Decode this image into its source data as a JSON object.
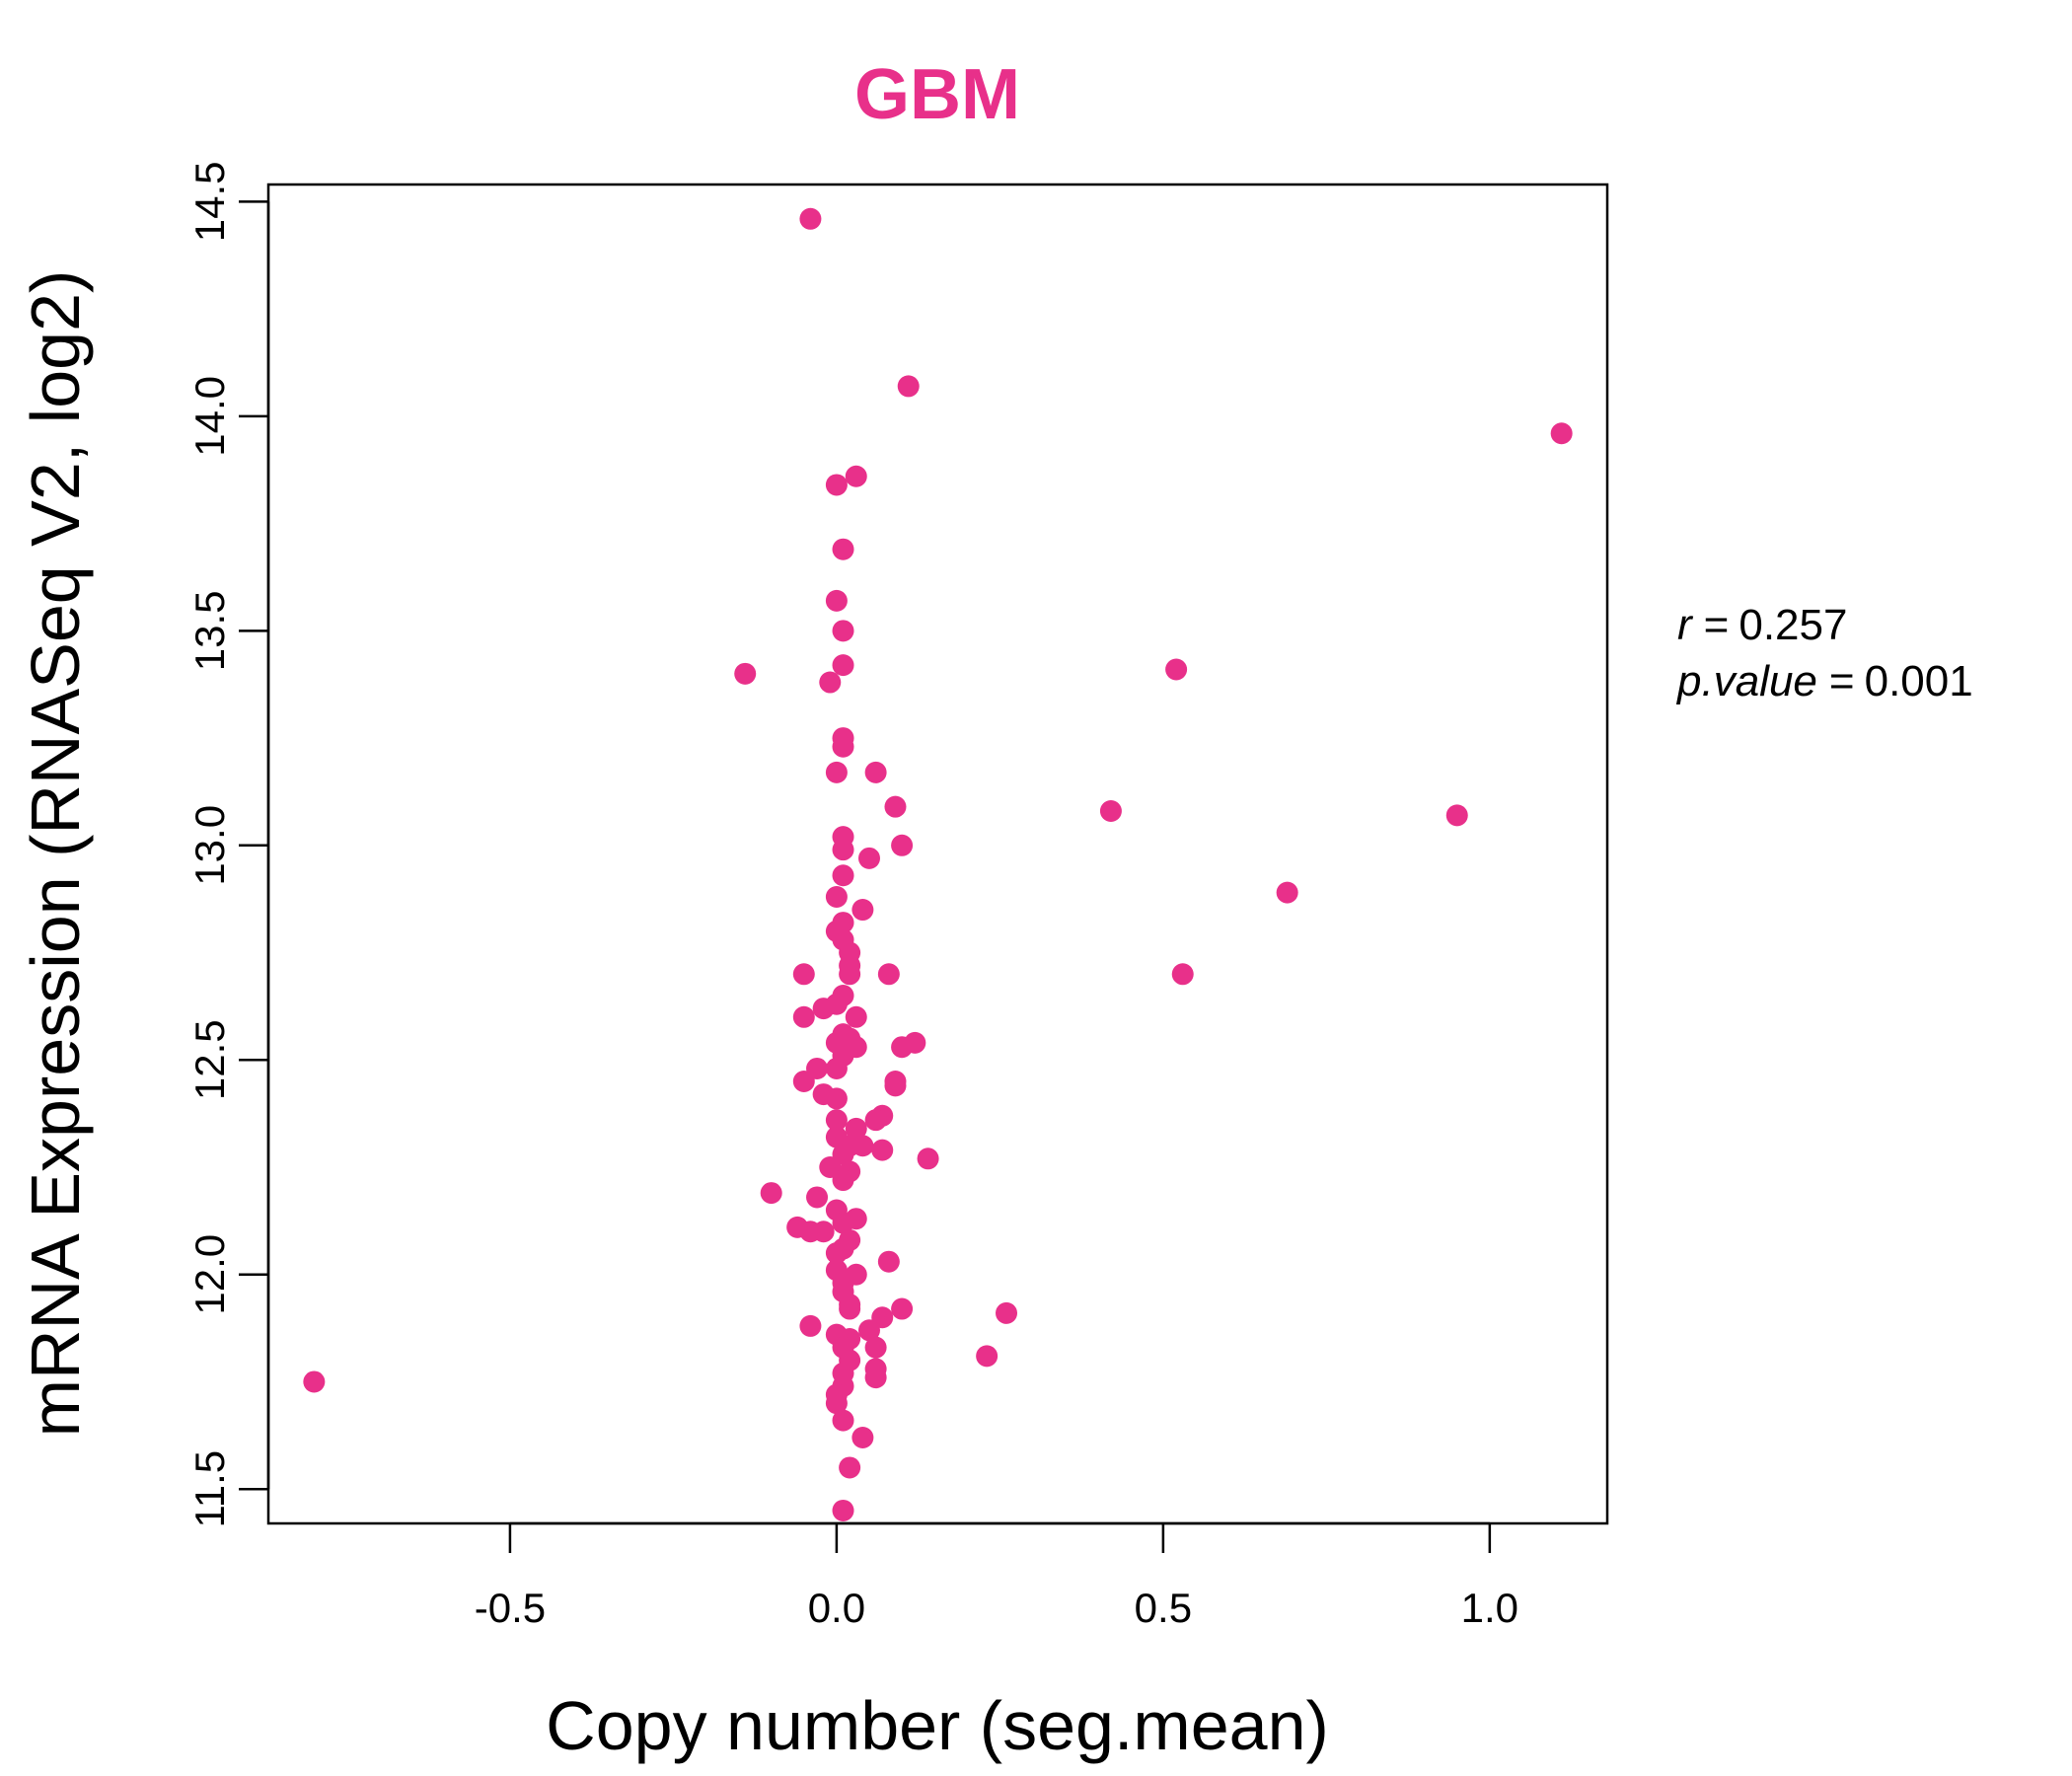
{
  "chart_data": {
    "type": "scatter",
    "title": "GBM",
    "xlabel": "Copy number (seg.mean)",
    "ylabel": "mRNA Expression (RNASeq V2, log2)",
    "xlim": [
      -0.87,
      1.18
    ],
    "ylim": [
      11.42,
      14.54
    ],
    "x_ticks": [
      -0.5,
      0.0,
      0.5,
      1.0
    ],
    "x_tick_labels": [
      "-0.5",
      "0.0",
      "0.5",
      "1.0"
    ],
    "y_ticks": [
      11.5,
      12.0,
      12.5,
      13.0,
      13.5,
      14.0,
      14.5
    ],
    "y_tick_labels": [
      "11.5",
      "12.0",
      "12.5",
      "13.0",
      "13.5",
      "14.0",
      "14.5"
    ],
    "grid": false,
    "point_color": "#E8308A",
    "title_color": "#E8308A",
    "annotation": {
      "r_label": "r",
      "r_value": "0.257",
      "p_label": "p.value",
      "p_value": "0.001"
    },
    "points": [
      [
        -0.04,
        14.46
      ],
      [
        0.11,
        14.07
      ],
      [
        1.11,
        13.96
      ],
      [
        0.03,
        13.86
      ],
      [
        0.0,
        13.84
      ],
      [
        0.01,
        13.69
      ],
      [
        0.0,
        13.57
      ],
      [
        0.01,
        13.5
      ],
      [
        0.01,
        13.42
      ],
      [
        -0.14,
        13.4
      ],
      [
        0.52,
        13.41
      ],
      [
        -0.01,
        13.38
      ],
      [
        0.01,
        13.25
      ],
      [
        0.01,
        13.23
      ],
      [
        0.0,
        13.17
      ],
      [
        0.06,
        13.17
      ],
      [
        0.09,
        13.09
      ],
      [
        0.42,
        13.08
      ],
      [
        0.95,
        13.07
      ],
      [
        0.01,
        13.02
      ],
      [
        0.01,
        12.99
      ],
      [
        0.1,
        13.0
      ],
      [
        0.05,
        12.97
      ],
      [
        0.01,
        12.93
      ],
      [
        0.69,
        12.89
      ],
      [
        0.0,
        12.88
      ],
      [
        0.04,
        12.85
      ],
      [
        0.01,
        12.82
      ],
      [
        0.0,
        12.8
      ],
      [
        0.01,
        12.78
      ],
      [
        0.02,
        12.75
      ],
      [
        0.02,
        12.72
      ],
      [
        -0.05,
        12.7
      ],
      [
        0.02,
        12.7
      ],
      [
        0.08,
        12.7
      ],
      [
        0.53,
        12.7
      ],
      [
        0.01,
        12.65
      ],
      [
        0.0,
        12.63
      ],
      [
        -0.02,
        12.62
      ],
      [
        -0.05,
        12.6
      ],
      [
        0.03,
        12.6
      ],
      [
        0.01,
        12.56
      ],
      [
        0.0,
        12.54
      ],
      [
        0.02,
        12.55
      ],
      [
        0.12,
        12.54
      ],
      [
        0.1,
        12.53
      ],
      [
        0.03,
        12.53
      ],
      [
        0.01,
        12.51
      ],
      [
        -0.03,
        12.48
      ],
      [
        0.0,
        12.48
      ],
      [
        -0.05,
        12.45
      ],
      [
        0.09,
        12.45
      ],
      [
        0.09,
        12.44
      ],
      [
        -0.02,
        12.42
      ],
      [
        0.0,
        12.41
      ],
      [
        0.07,
        12.37
      ],
      [
        0.06,
        12.36
      ],
      [
        0.0,
        12.36
      ],
      [
        0.03,
        12.34
      ],
      [
        0.0,
        12.32
      ],
      [
        0.02,
        12.3
      ],
      [
        0.04,
        12.3
      ],
      [
        0.07,
        12.29
      ],
      [
        0.01,
        12.28
      ],
      [
        0.14,
        12.27
      ],
      [
        -0.01,
        12.25
      ],
      [
        0.02,
        12.24
      ],
      [
        0.01,
        12.22
      ],
      [
        -0.1,
        12.19
      ],
      [
        -0.03,
        12.18
      ],
      [
        0.0,
        12.15
      ],
      [
        0.03,
        12.13
      ],
      [
        0.01,
        12.12
      ],
      [
        -0.06,
        12.11
      ],
      [
        -0.04,
        12.1
      ],
      [
        -0.02,
        12.1
      ],
      [
        0.02,
        12.08
      ],
      [
        0.01,
        12.06
      ],
      [
        0.0,
        12.05
      ],
      [
        0.08,
        12.03
      ],
      [
        0.0,
        12.01
      ],
      [
        0.03,
        12.0
      ],
      [
        0.01,
        11.98
      ],
      [
        0.01,
        11.96
      ],
      [
        0.02,
        11.93
      ],
      [
        0.02,
        11.92
      ],
      [
        0.1,
        11.92
      ],
      [
        0.26,
        11.91
      ],
      [
        0.07,
        11.9
      ],
      [
        0.05,
        11.87
      ],
      [
        -0.04,
        11.88
      ],
      [
        0.0,
        11.86
      ],
      [
        0.02,
        11.85
      ],
      [
        0.01,
        11.83
      ],
      [
        0.06,
        11.83
      ],
      [
        0.23,
        11.81
      ],
      [
        0.02,
        11.8
      ],
      [
        0.06,
        11.78
      ],
      [
        0.01,
        11.77
      ],
      [
        0.06,
        11.76
      ],
      [
        -0.8,
        11.75
      ],
      [
        0.01,
        11.74
      ],
      [
        0.0,
        11.72
      ],
      [
        0.0,
        11.7
      ],
      [
        0.01,
        11.66
      ],
      [
        0.04,
        11.62
      ],
      [
        0.02,
        11.55
      ],
      [
        0.01,
        11.45
      ]
    ]
  }
}
